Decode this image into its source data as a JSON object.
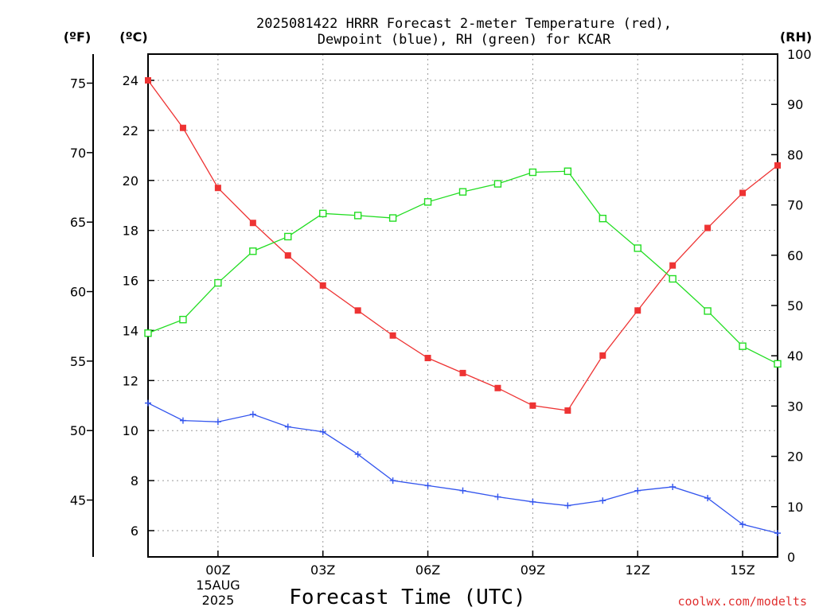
{
  "chart_data": {
    "type": "line",
    "title_lines": [
      "2025081422 HRRR Forecast 2-meter Temperature (red),",
      "Dewpoint (blue), RH (green) for KCAR"
    ],
    "left_outer_unit": "(ºF)",
    "left_inner_unit": "(ºC)",
    "right_unit": "(RH)",
    "xlabel": "Forecast Time (UTC)",
    "credit": "coolwx.com/modelts",
    "x_hours": [
      -2,
      -1,
      0,
      1,
      2,
      3,
      4,
      5,
      6,
      7,
      8,
      9,
      10,
      11,
      12,
      13,
      14,
      15,
      16
    ],
    "x_range": [
      -2,
      16
    ],
    "x_ticks": [
      {
        "hour": 0,
        "label": "00Z"
      },
      {
        "hour": 3,
        "label": "03Z"
      },
      {
        "hour": 6,
        "label": "06Z"
      },
      {
        "hour": 9,
        "label": "09Z"
      },
      {
        "hour": 12,
        "label": "12Z"
      },
      {
        "hour": 15,
        "label": "15Z"
      }
    ],
    "date_label": [
      "15AUG",
      "2025"
    ],
    "celsius_range": [
      4.95,
      25.05
    ],
    "celsius_ticks": [
      6,
      8,
      10,
      12,
      14,
      16,
      18,
      20,
      22,
      24
    ],
    "fahrenheit_ticks": [
      45,
      50,
      55,
      60,
      65,
      70,
      75
    ],
    "rh_range": [
      0,
      100
    ],
    "rh_ticks": [
      0,
      10,
      20,
      30,
      40,
      50,
      60,
      70,
      80,
      90,
      100
    ],
    "series": [
      {
        "name": "Temperature",
        "axis": "celsius",
        "color": "#ee3333",
        "marker": "filled-square",
        "values": [
          24.0,
          22.1,
          19.7,
          18.3,
          17.0,
          15.8,
          14.8,
          13.8,
          12.9,
          12.3,
          11.7,
          11.0,
          10.8,
          13.0,
          14.8,
          16.6,
          18.1,
          19.5,
          20.6
        ]
      },
      {
        "name": "Dewpoint",
        "axis": "celsius",
        "color": "#3355ee",
        "marker": "plus",
        "values": [
          11.1,
          10.4,
          10.35,
          10.65,
          10.15,
          9.95,
          9.05,
          8.0,
          7.8,
          7.6,
          7.35,
          7.15,
          7.0,
          7.2,
          7.6,
          7.75,
          7.3,
          6.25,
          5.9
        ]
      },
      {
        "name": "RH",
        "axis": "rh",
        "color": "#22dd22",
        "marker": "open-square",
        "values": [
          44.5,
          47.2,
          54.5,
          60.8,
          63.7,
          68.3,
          67.9,
          67.4,
          70.6,
          72.6,
          74.2,
          76.5,
          76.7,
          67.3,
          61.4,
          55.3,
          48.9,
          41.9,
          38.4
        ]
      }
    ]
  }
}
